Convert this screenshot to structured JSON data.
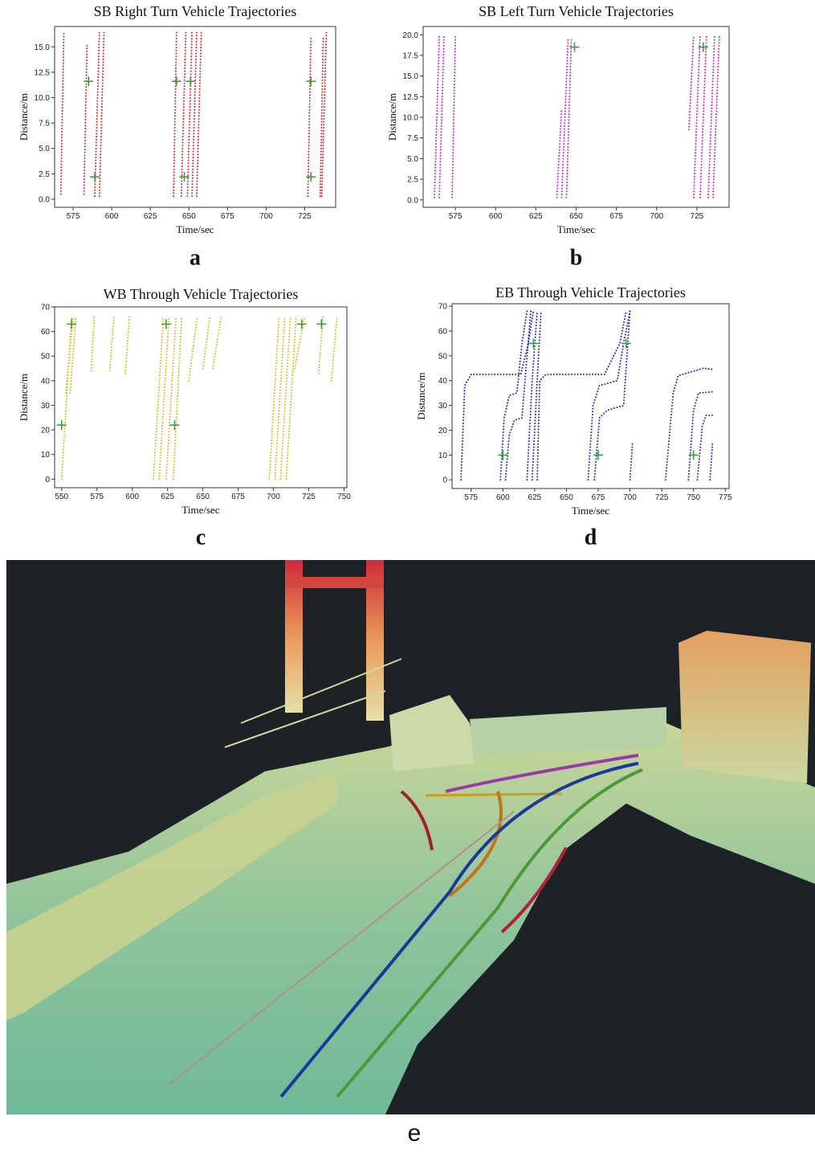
{
  "chart_data": [
    {
      "type": "scatter",
      "title": "SB Right Turn Vehicle Trajectories",
      "x_label": "Time/sec",
      "y_label": "Distance/m",
      "caption": "a",
      "xlim": [
        563,
        745
      ],
      "xticks": [
        575,
        600,
        625,
        650,
        675,
        700,
        725
      ],
      "ylim": [
        -0.8,
        17
      ],
      "yticks": [
        {
          "value": 0,
          "label": "0.0"
        },
        {
          "value": 2.5,
          "label": "2.5"
        },
        {
          "value": 5,
          "label": "5.0"
        },
        {
          "value": 7.5,
          "label": "7.5"
        },
        {
          "value": 10,
          "label": "10.0"
        },
        {
          "value": 12.5,
          "label": "12.5"
        },
        {
          "value": 15,
          "label": "15.0"
        }
      ],
      "series": [
        {
          "color": "#e8262a",
          "x": [
            567,
            569
          ],
          "values": [
            0.5,
            16.5
          ]
        },
        {
          "color": "#e8262a",
          "x": [
            582,
            584
          ],
          "values": [
            0.5,
            15.3
          ]
        },
        {
          "color": "#e8262a",
          "x": [
            589,
            592
          ],
          "values": [
            0.3,
            16.5
          ]
        },
        {
          "color": "#e8262a",
          "x": [
            592,
            595
          ],
          "values": [
            0.3,
            16.5
          ]
        },
        {
          "color": "#e8262a",
          "x": [
            640,
            642
          ],
          "values": [
            0.3,
            16.5
          ]
        },
        {
          "color": "#e8262a",
          "x": [
            645,
            648
          ],
          "values": [
            0.3,
            16.5
          ]
        },
        {
          "color": "#e8262a",
          "x": [
            649,
            652
          ],
          "values": [
            0.3,
            16.5
          ]
        },
        {
          "color": "#e8262a",
          "x": [
            652,
            655
          ],
          "values": [
            0.3,
            16.5
          ]
        },
        {
          "color": "#e8262a",
          "x": [
            655,
            658
          ],
          "values": [
            0.3,
            16.5
          ]
        },
        {
          "color": "#e8262a",
          "x": [
            727,
            729
          ],
          "values": [
            0.3,
            16
          ]
        },
        {
          "color": "#e8262a",
          "x": [
            735,
            737
          ],
          "values": [
            0.3,
            16
          ]
        },
        {
          "color": "#e8262a",
          "x": [
            736,
            739
          ],
          "values": [
            0.3,
            16.5
          ]
        },
        {
          "color": "#2ca02c",
          "marker": "+",
          "x": [
            585,
            589,
            642,
            647,
            651,
            729,
            729
          ],
          "values": [
            11.6,
            2.2,
            11.6,
            2.2,
            11.6,
            11.6,
            2.2
          ]
        }
      ]
    },
    {
      "type": "scatter",
      "title": "SB Left Turn Vehicle Trajectories",
      "x_label": "Time/sec",
      "y_label": "Distance/m",
      "caption": "b",
      "xlim": [
        555,
        745
      ],
      "xticks": [
        575,
        600,
        625,
        650,
        675,
        700,
        725
      ],
      "ylim": [
        -0.9,
        21
      ],
      "yticks": [
        {
          "value": 0,
          "label": "0.0"
        },
        {
          "value": 2.5,
          "label": "2.5"
        },
        {
          "value": 5,
          "label": "5.0"
        },
        {
          "value": 7.5,
          "label": "7.5"
        },
        {
          "value": 10,
          "label": "10.0"
        },
        {
          "value": 12.5,
          "label": "12.5"
        },
        {
          "value": 15,
          "label": "15.0"
        },
        {
          "value": 17.5,
          "label": "17.5"
        },
        {
          "value": 20,
          "label": "20.0"
        }
      ],
      "series": [
        {
          "color": "#d726d7",
          "x": [
            562,
            565
          ],
          "values": [
            0.3,
            19.8
          ]
        },
        {
          "color": "#d726d7",
          "x": [
            565,
            568
          ],
          "values": [
            0.3,
            20
          ]
        },
        {
          "color": "#d726d7",
          "x": [
            573,
            575
          ],
          "values": [
            0.3,
            19.8
          ]
        },
        {
          "color": "#d726d7",
          "x": [
            638,
            641
          ],
          "values": [
            0.3,
            11
          ]
        },
        {
          "color": "#d726d7",
          "x": [
            641,
            645
          ],
          "values": [
            0.3,
            19.5
          ]
        },
        {
          "color": "#d726d7",
          "x": [
            644,
            647
          ],
          "values": [
            0.3,
            19.5
          ]
        },
        {
          "color": "#d726d7",
          "x": [
            720,
            723
          ],
          "values": [
            8.5,
            20
          ]
        },
        {
          "color": "#d726d7",
          "x": [
            723,
            727
          ],
          "values": [
            0.3,
            20
          ]
        },
        {
          "color": "#d726d7",
          "x": [
            727,
            731
          ],
          "values": [
            0.3,
            20
          ]
        },
        {
          "color": "#d726d7",
          "x": [
            732,
            736
          ],
          "values": [
            0.3,
            20
          ]
        },
        {
          "color": "#d726d7",
          "x": [
            735,
            739
          ],
          "values": [
            0.3,
            20
          ]
        },
        {
          "color": "#2ca02c",
          "marker": "+",
          "x": [
            649,
            729
          ],
          "values": [
            18.5,
            18.5
          ]
        }
      ]
    },
    {
      "type": "scatter",
      "title": "WB Through Vehicle Trajectories",
      "x_label": "Time/sec",
      "y_label": "Distance/m",
      "caption": "c",
      "xlim": [
        545,
        752
      ],
      "xticks": [
        550,
        575,
        600,
        625,
        650,
        675,
        700,
        725,
        750
      ],
      "ylim": [
        -3.5,
        70
      ],
      "yticks": [
        0,
        10,
        20,
        30,
        40,
        50,
        60,
        70
      ],
      "series": [
        {
          "color": "#c8c820",
          "x": [
            550,
            557
          ],
          "values": [
            0,
            66
          ]
        },
        {
          "color": "#c8c820",
          "x": [
            553,
            558
          ],
          "values": [
            35,
            66
          ]
        },
        {
          "color": "#c8c820",
          "x": [
            556,
            560
          ],
          "values": [
            35,
            66
          ]
        },
        {
          "color": "#c8c820",
          "x": [
            571,
            573
          ],
          "values": [
            44,
            66
          ]
        },
        {
          "color": "#c8c820",
          "x": [
            584,
            587
          ],
          "values": [
            44,
            66
          ]
        },
        {
          "color": "#c8c820",
          "x": [
            595,
            598
          ],
          "values": [
            43,
            66
          ]
        },
        {
          "color": "#c8c820",
          "x": [
            615,
            622
          ],
          "values": [
            0,
            66
          ]
        },
        {
          "color": "#c8c820",
          "x": [
            619,
            626
          ],
          "values": [
            0,
            66
          ]
        },
        {
          "color": "#c8c820",
          "x": [
            624,
            631
          ],
          "values": [
            0,
            66
          ]
        },
        {
          "color": "#c8c820",
          "x": [
            629,
            635
          ],
          "values": [
            0,
            66
          ]
        },
        {
          "color": "#c8c820",
          "x": [
            640,
            646
          ],
          "values": [
            40,
            66
          ]
        },
        {
          "color": "#c8c820",
          "x": [
            650,
            655
          ],
          "values": [
            45,
            66
          ]
        },
        {
          "color": "#c8c820",
          "x": [
            657,
            663
          ],
          "values": [
            45,
            66
          ]
        },
        {
          "color": "#c8c820",
          "x": [
            697,
            704
          ],
          "values": [
            0,
            66
          ]
        },
        {
          "color": "#c8c820",
          "x": [
            701,
            708
          ],
          "values": [
            0,
            66
          ]
        },
        {
          "color": "#c8c820",
          "x": [
            705,
            712
          ],
          "values": [
            0,
            66
          ]
        },
        {
          "color": "#c8c820",
          "x": [
            709,
            716
          ],
          "values": [
            0,
            66
          ]
        },
        {
          "color": "#c8c820",
          "x": [
            715,
            722
          ],
          "values": [
            45,
            66
          ]
        },
        {
          "color": "#c8c820",
          "x": [
            732,
            735
          ],
          "values": [
            43,
            66
          ]
        },
        {
          "color": "#c8c820",
          "x": [
            741,
            745
          ],
          "values": [
            40,
            66
          ]
        },
        {
          "color": "#2ca02c",
          "marker": "+",
          "x": [
            550,
            557,
            624,
            630,
            720,
            734
          ],
          "values": [
            22,
            63,
            63,
            22,
            63,
            63
          ]
        }
      ]
    },
    {
      "type": "scatter",
      "title": "EB Through Vehicle Trajectories",
      "x_label": "Time/sec",
      "y_label": "Distance/m",
      "caption": "d",
      "xlim": [
        560,
        778
      ],
      "xticks": [
        575,
        600,
        625,
        650,
        675,
        700,
        725,
        750,
        775
      ],
      "ylim": [
        -3.5,
        71
      ],
      "yticks": [
        0,
        10,
        20,
        30,
        40,
        50,
        60,
        70
      ],
      "series": [
        {
          "color": "#2828e0",
          "x": [
            567,
            570,
            575,
            614,
            620,
            624
          ],
          "values": [
            0,
            38,
            42.5,
            42.5,
            55,
            68
          ]
        },
        {
          "color": "#2828e0",
          "x": [
            598,
            601,
            605,
            611,
            615,
            619
          ],
          "values": [
            0,
            25,
            34,
            35,
            55,
            68
          ]
        },
        {
          "color": "#2828e0",
          "x": [
            602,
            605,
            609,
            615,
            619,
            622
          ],
          "values": [
            0,
            18,
            24,
            25,
            50,
            68
          ]
        },
        {
          "color": "#2828e0",
          "x": [
            619,
            623,
            627
          ],
          "values": [
            0,
            40,
            68
          ]
        },
        {
          "color": "#2828e0",
          "x": [
            623,
            627,
            630
          ],
          "values": [
            0,
            40,
            68
          ]
        },
        {
          "color": "#2828e0",
          "x": [
            627,
            629,
            634,
            680,
            692,
            697
          ],
          "values": [
            0,
            40,
            42.5,
            42.5,
            55,
            68
          ]
        },
        {
          "color": "#2828e0",
          "x": [
            667,
            671,
            676,
            690,
            695,
            700
          ],
          "values": [
            0,
            30,
            38,
            40,
            55,
            68
          ]
        },
        {
          "color": "#2828e0",
          "x": [
            672,
            676,
            682,
            695,
            700
          ],
          "values": [
            0,
            25,
            28,
            30,
            68
          ]
        },
        {
          "color": "#2828e0",
          "x": [
            700,
            702
          ],
          "values": [
            0,
            15
          ]
        },
        {
          "color": "#2828e0",
          "x": [
            728,
            734,
            738,
            758,
            765
          ],
          "values": [
            0,
            35,
            42,
            45,
            44.5
          ]
        },
        {
          "color": "#2828e0",
          "x": [
            746,
            750,
            754,
            765
          ],
          "values": [
            0,
            28,
            35,
            35.5
          ]
        },
        {
          "color": "#2828e0",
          "x": [
            753,
            757,
            760,
            765
          ],
          "values": [
            0,
            22,
            26,
            26
          ]
        },
        {
          "color": "#2828e0",
          "x": [
            763,
            765
          ],
          "values": [
            0,
            15
          ]
        },
        {
          "color": "#2ca02c",
          "marker": "+",
          "x": [
            600,
            624,
            675,
            697,
            750
          ],
          "values": [
            10,
            55,
            10,
            55,
            10
          ]
        }
      ]
    }
  ],
  "image": {
    "caption": "e"
  }
}
